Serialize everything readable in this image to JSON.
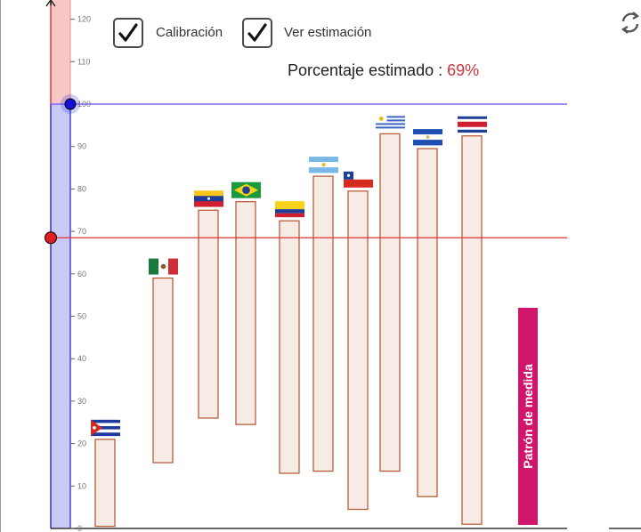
{
  "controls": {
    "calibration": {
      "label": "Calibración",
      "checked": true
    },
    "show_estimate": {
      "label": "Ver estimación",
      "checked": true
    }
  },
  "estimate": {
    "label": "Porcentaje estimado :",
    "value": "69%"
  },
  "icons": {
    "reset": "refresh-icon",
    "check": "check-icon"
  },
  "colors": {
    "axis_upper_fill": "#f9c6c6",
    "axis_lower_fill": "#c9c9f6",
    "calibration_line": "#7b6bf0",
    "estimate_line": "#e03030",
    "bar_fill": "#f7ebe6",
    "bar_stroke": "#b5522b",
    "pattern_bar": "#d0166a"
  },
  "chart_data": {
    "type": "bar",
    "y_ticks": [
      "0",
      "10",
      "20",
      "30",
      "40",
      "50",
      "60",
      "70",
      "80",
      "90",
      "100",
      "110",
      "120"
    ],
    "ylim": [
      0,
      120
    ],
    "calibration_value": 100,
    "estimate_value": 68.5,
    "pattern_bar": {
      "label": "Patrón de medida",
      "top": 52,
      "bottom": 0
    },
    "series": [
      {
        "flag": "cuba-flag",
        "low": 0.5,
        "high": 21
      },
      {
        "flag": "mexico-flag",
        "low": 15.5,
        "high": 59
      },
      {
        "flag": "venezuela-flag",
        "low": 26,
        "high": 75
      },
      {
        "flag": "brazil-flag",
        "low": 24.5,
        "high": 77
      },
      {
        "flag": "colombia-flag",
        "low": 13,
        "high": 72.5
      },
      {
        "flag": "argentina-flag",
        "low": 13.5,
        "high": 83
      },
      {
        "flag": "chile-flag",
        "low": 4.5,
        "high": 79.5
      },
      {
        "flag": "uruguay-flag",
        "low": 13.5,
        "high": 93
      },
      {
        "flag": "el-salvador-flag",
        "low": 7.5,
        "high": 89.5
      },
      {
        "flag": "costa-rica-flag",
        "low": 1,
        "high": 92.5
      }
    ]
  }
}
